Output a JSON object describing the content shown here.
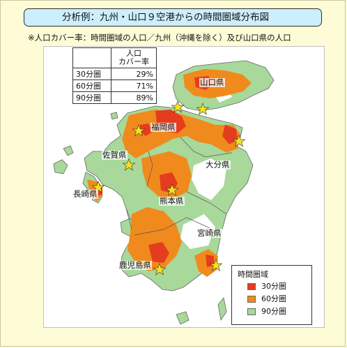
{
  "title": "分析例：九州・山口９空港からの時間圏域分布図",
  "note": "※人口カバー率：時間圏域の人口／九州（沖縄を除く）及び山口県の人口",
  "coverage_table": {
    "header": "人口\nカバー率",
    "rows": [
      {
        "label": "30分圏",
        "value": "29%"
      },
      {
        "label": "60分圏",
        "value": "71%"
      },
      {
        "label": "90分圏",
        "value": "89%"
      }
    ]
  },
  "prefectures": {
    "yamaguchi": "山口県",
    "fukuoka": "福岡県",
    "saga": "佐賀県",
    "oita": "大分県",
    "nagasaki": "長崎県",
    "kumamoto": "熊本県",
    "miyazaki": "宮崎県",
    "kagoshima": "鹿児島県"
  },
  "legend": {
    "title": "時間圏域",
    "items": [
      {
        "label": "30分圏",
        "color": "#e53c1e"
      },
      {
        "label": "60分圏",
        "color": "#f08a1c"
      },
      {
        "label": "90分圏",
        "color": "#a8d89a"
      }
    ]
  },
  "colors": {
    "background": "#fdfcd6",
    "title_fill": "#cdeefd",
    "airport_star": "#f5e21b",
    "boundary": "#555555"
  },
  "airport_marker": "star-icon"
}
